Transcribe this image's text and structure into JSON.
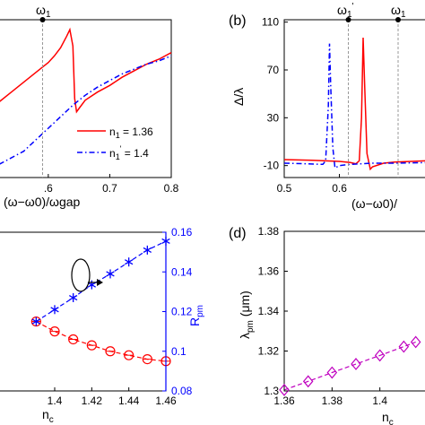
{
  "chart_data": [
    {
      "panel": "a",
      "type": "line",
      "xlabel": "(ω−ω0)/ωgap",
      "xlim": [
        0.52,
        0.8
      ],
      "xticks": [
        0.6,
        0.7,
        0.8
      ],
      "xtick_labels": [
        ".6",
        "0.7",
        "0.8"
      ],
      "marker_label": "ω1",
      "marker_x": 0.643,
      "series": [
        {
          "name": "n1 = 1.36",
          "color": "#ff0000",
          "style": "solid",
          "x": [
            0.52,
            0.54,
            0.56,
            0.58,
            0.6,
            0.61,
            0.62,
            0.63,
            0.635,
            0.64,
            0.643,
            0.646,
            0.65,
            0.66,
            0.68,
            0.7,
            0.72,
            0.74,
            0.76,
            0.78,
            0.8
          ],
          "y": [
            -0.3,
            0.0,
            0.3,
            0.6,
            0.9,
            1.1,
            1.35,
            1.7,
            1.9,
            1.4,
            -0.2,
            -0.6,
            -0.5,
            -0.25,
            0.0,
            0.2,
            0.45,
            0.65,
            0.85,
            1.0,
            1.2
          ]
        },
        {
          "name": "n1' = 1.4",
          "color": "#0000ff",
          "style": "dashdot",
          "x": [
            0.52,
            0.56,
            0.6,
            0.64,
            0.66,
            0.68,
            0.7,
            0.72,
            0.74,
            0.76,
            0.78,
            0.8
          ],
          "y": [
            -2.2,
            -1.8,
            -1.1,
            -0.4,
            -0.1,
            0.15,
            0.35,
            0.55,
            0.7,
            0.85,
            0.95,
            1.1
          ]
        }
      ],
      "legend_labels": [
        "n1 = 1.36",
        "n1' = 1.4"
      ],
      "legend_placement": "lower-right"
    },
    {
      "panel": "b",
      "tag": "(b)",
      "type": "line",
      "xlabel": "(ω−ω0)/",
      "ylabel": "Δ/λ",
      "xlim": [
        0.5,
        0.76
      ],
      "ylim": [
        -20,
        110
      ],
      "xticks": [
        0.5,
        0.6
      ],
      "xtick_labels": [
        "0.5",
        "0.6"
      ],
      "yticks": [
        -10,
        30,
        70,
        110
      ],
      "ytick_labels": [
        "-10",
        "30",
        "70",
        "110"
      ],
      "markers": [
        {
          "label": "ω1'",
          "x": 0.582
        },
        {
          "label": "ω1",
          "x": 0.643
        }
      ],
      "series": [
        {
          "name": "n1 = 1.36",
          "color": "#ff0000",
          "style": "solid",
          "x": [
            0.5,
            0.55,
            0.6,
            0.62,
            0.63,
            0.636,
            0.64,
            0.643,
            0.646,
            0.65,
            0.656,
            0.66,
            0.68,
            0.7,
            0.76
          ],
          "y": [
            -5,
            -5.5,
            -6.5,
            -7.5,
            -8.5,
            -6,
            30,
            97,
            55,
            0,
            -13,
            -11,
            -8,
            -7,
            -6
          ]
        },
        {
          "name": "n1' = 1.4",
          "color": "#0000ff",
          "style": "dashdot",
          "x": [
            0.5,
            0.54,
            0.57,
            0.575,
            0.58,
            0.582,
            0.584,
            0.588,
            0.592,
            0.6,
            0.62,
            0.66,
            0.7,
            0.76
          ],
          "y": [
            -8,
            -8.5,
            -9,
            -6,
            40,
            92,
            60,
            5,
            -12,
            -10,
            -9,
            -8,
            -8,
            -7.5
          ]
        }
      ]
    },
    {
      "panel": "c",
      "type": "line",
      "xlabel": "nc",
      "ylabel_right": "Rpm",
      "xlim": [
        1.36,
        1.46
      ],
      "xticks": [
        1.4,
        1.42,
        1.44,
        1.46
      ],
      "xtick_labels": [
        "1.4",
        "1.42",
        "1.44",
        "1.46"
      ],
      "y2lim": [
        0.08,
        0.16
      ],
      "y2ticks": [
        0.08,
        0.1,
        0.12,
        0.14,
        0.16
      ],
      "y2tick_labels": [
        "0.08",
        "0.1",
        "0.12",
        "0.14",
        "0.16"
      ],
      "series": [
        {
          "name": "red",
          "color": "#ff0000",
          "marker": "circle",
          "axis": "left",
          "x": [
            1.39,
            1.4,
            1.41,
            1.42,
            1.43,
            1.44,
            1.45,
            1.46
          ],
          "y": [
            0.115,
            0.11,
            0.106,
            0.103,
            0.1,
            0.098,
            0.096,
            0.095
          ]
        },
        {
          "name": "blue",
          "color": "#0000ff",
          "marker": "star",
          "axis": "right",
          "x": [
            1.39,
            1.4,
            1.41,
            1.42,
            1.43,
            1.44,
            1.45,
            1.46
          ],
          "y": [
            0.115,
            0.121,
            0.127,
            0.1335,
            0.139,
            0.145,
            0.151,
            0.1555
          ]
        }
      ]
    },
    {
      "panel": "d",
      "tag": "(d)",
      "type": "line",
      "xlabel": "nc",
      "ylabel": "λpm (μm)",
      "xlim": [
        1.36,
        1.42
      ],
      "ylim": [
        1.3,
        1.38
      ],
      "xticks": [
        1.36,
        1.38,
        1.4
      ],
      "xtick_labels": [
        "1.36",
        "1.38",
        "1.4"
      ],
      "yticks": [
        1.3,
        1.32,
        1.34,
        1.36,
        1.38
      ],
      "ytick_labels": [
        "1.3",
        "1.32",
        "1.34",
        "1.36",
        "1.38"
      ],
      "series": [
        {
          "name": "magenta",
          "color": "#bf00bf",
          "marker": "diamond",
          "x": [
            1.36,
            1.37,
            1.38,
            1.39,
            1.4,
            1.41,
            1.415
          ],
          "y": [
            1.3005,
            1.3048,
            1.3092,
            1.3135,
            1.3178,
            1.3222,
            1.3245
          ]
        }
      ]
    }
  ],
  "panel_tags": {
    "b": "(b)",
    "d": "(d)"
  },
  "axis_text": {
    "a_xlabel": "(ω−ω0)/ωgap",
    "b_xlabel": "(ω−ω0)/",
    "b_ylabel": "Δ/λ",
    "c_xlabel": "nc",
    "c_ylabel_right": "Rpm",
    "d_xlabel": "nc",
    "d_ylabel": "λpm (μm)",
    "a_marker": "ω1",
    "b_marker1": "ω1'",
    "b_marker2": "ω1"
  },
  "colors": {
    "red": "#ff0000",
    "blue": "#0000ff",
    "magenta": "#bf00bf",
    "grid": "#999999"
  }
}
